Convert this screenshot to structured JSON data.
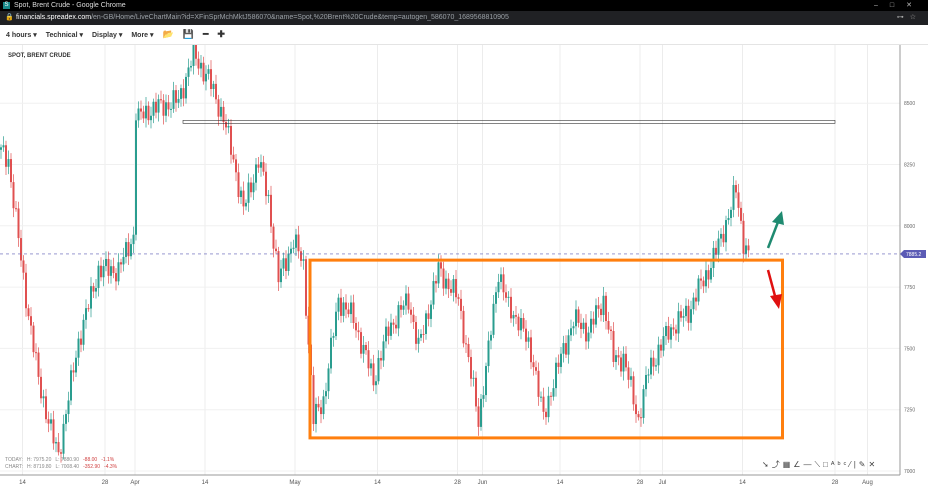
{
  "window": {
    "title": "Spot, Brent Crude - Google Chrome",
    "url_host": "financials.spreadex.com",
    "url_path": "/en-GB/Home/LiveChartMain?id=XFinSprMchMktJ586070&name=Spot,%20Brent%20Crude&temp=autogen_586070_1689568810905"
  },
  "toolbar": {
    "interval": "4 hours ▾",
    "technical": "Technical ▾",
    "display": "Display ▾",
    "more": "More ▾",
    "icons": [
      "folder-open-icon",
      "save-icon",
      "zoom-out-icon",
      "zoom-in-icon"
    ]
  },
  "symbol": "SPOT, BRENT CRUDE",
  "stats": {
    "today": {
      "label": "TODAY:",
      "high": "H: 7975.20",
      "low": "L: 7880.90",
      "change": "-88.00",
      "pct": "-1.1%"
    },
    "chart": {
      "label": "CHART:",
      "high": "H: 8719.80",
      "low": "L: 7008.40",
      "change": "-352.90",
      "pct": "-4.3%"
    }
  },
  "colors": {
    "up": "#2a9d8f",
    "down": "#e05050",
    "annotation_box": "#ff7f0e",
    "arrow_up": "#1f8a70",
    "arrow_down": "#e01010",
    "price_marker": "#5b5bb5"
  },
  "chart_data": {
    "type": "candlestick",
    "title": "SPOT, BRENT CRUDE",
    "ylim": [
      7000,
      8800
    ],
    "yticks": [
      7000,
      7250,
      7500,
      7750,
      8000,
      8250,
      8500
    ],
    "current_price": "7885.2",
    "xticks": [
      {
        "bar": 9,
        "label": "14"
      },
      {
        "bar": 42,
        "label": "28"
      },
      {
        "bar": 54,
        "label": "Apr"
      },
      {
        "bar": 82,
        "label": "14"
      },
      {
        "bar": 118,
        "label": "May"
      },
      {
        "bar": 151,
        "label": "14"
      },
      {
        "bar": 183,
        "label": "28"
      },
      {
        "bar": 193,
        "label": "Jun"
      },
      {
        "bar": 224,
        "label": "14"
      },
      {
        "bar": 256,
        "label": "28"
      },
      {
        "bar": 265,
        "label": "Jul"
      },
      {
        "bar": 297,
        "label": "14"
      },
      {
        "bar": 334,
        "label": "28"
      },
      {
        "bar": 347,
        "label": "Aug"
      }
    ],
    "price_path": [
      [
        0,
        8310
      ],
      [
        4,
        8270
      ],
      [
        10,
        7780
      ],
      [
        16,
        7370
      ],
      [
        22,
        7125
      ],
      [
        24,
        7065
      ],
      [
        32,
        7530
      ],
      [
        40,
        7820
      ],
      [
        48,
        7820
      ],
      [
        54,
        7960
      ],
      [
        55,
        8430
      ],
      [
        60,
        8470
      ],
      [
        72,
        8510
      ],
      [
        78,
        8700
      ],
      [
        84,
        8600
      ],
      [
        90,
        8440
      ],
      [
        94,
        8270
      ],
      [
        98,
        8065
      ],
      [
        104,
        8270
      ],
      [
        108,
        8105
      ],
      [
        112,
        7780
      ],
      [
        118,
        7940
      ],
      [
        122,
        7840
      ],
      [
        126,
        7210
      ],
      [
        130,
        7290
      ],
      [
        136,
        7700
      ],
      [
        142,
        7620
      ],
      [
        150,
        7370
      ],
      [
        156,
        7580
      ],
      [
        164,
        7700
      ],
      [
        168,
        7500
      ],
      [
        176,
        7820
      ],
      [
        184,
        7700
      ],
      [
        188,
        7450
      ],
      [
        192,
        7210
      ],
      [
        196,
        7490
      ],
      [
        200,
        7820
      ],
      [
        204,
        7660
      ],
      [
        208,
        7620
      ],
      [
        214,
        7450
      ],
      [
        218,
        7210
      ],
      [
        222,
        7370
      ],
      [
        230,
        7615
      ],
      [
        236,
        7570
      ],
      [
        242,
        7700
      ],
      [
        246,
        7460
      ],
      [
        250,
        7460
      ],
      [
        256,
        7210
      ],
      [
        260,
        7410
      ],
      [
        268,
        7570
      ],
      [
        276,
        7650
      ],
      [
        280,
        7740
      ],
      [
        284,
        7820
      ],
      [
        288,
        7920
      ],
      [
        292,
        8045
      ],
      [
        295,
        8145
      ],
      [
        298,
        7940
      ],
      [
        300,
        7880
      ]
    ],
    "drawn_zones": [
      {
        "from": 8790,
        "to": 8780
      },
      {
        "from": 8430,
        "to": 8420
      }
    ],
    "annotation_box": {
      "from_bar": 124,
      "to_bar": 313,
      "price_high": 7860,
      "price_low": 7135
    },
    "arrows": [
      "up",
      "down"
    ]
  }
}
